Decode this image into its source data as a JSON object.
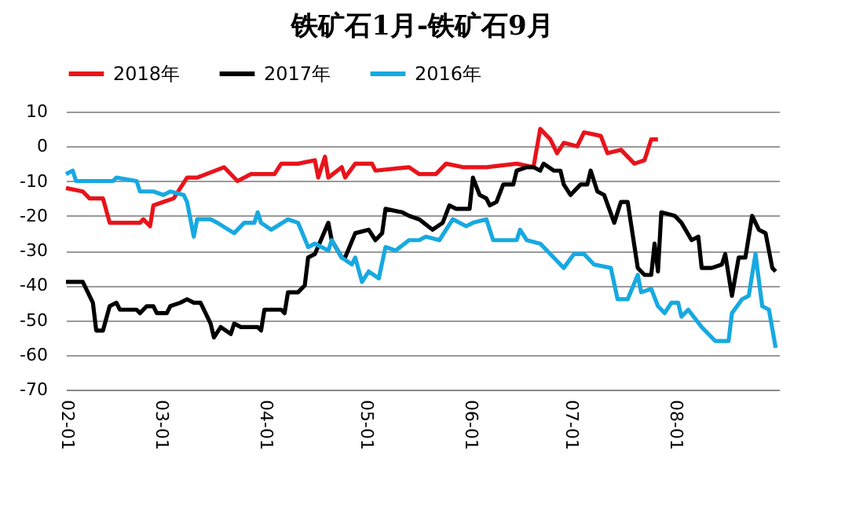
{
  "chart_data": {
    "type": "line",
    "title": "铁矿石1月-铁矿石9月",
    "xlim": [
      "--02-01",
      "--09-01"
    ],
    "xticks": [
      {
        "value": "--02-01",
        "label": "02-01"
      },
      {
        "value": "--03-01",
        "label": "03-01"
      },
      {
        "value": "--04-01",
        "label": "04-01"
      },
      {
        "value": "--05-01",
        "label": "05-01"
      },
      {
        "value": "--06-01",
        "label": "06-01"
      },
      {
        "value": "--07-01",
        "label": "07-01"
      },
      {
        "value": "--08-01",
        "label": "08-01"
      }
    ],
    "ylim": [
      -70,
      10
    ],
    "yticks": [
      -70,
      -60,
      -50,
      -40,
      -30,
      -20,
      -10,
      0,
      10
    ],
    "grid": "y",
    "legend": "top",
    "line_style": "solid",
    "series": [
      {
        "name": "2018年",
        "color": "#e8141b",
        "x": [
          "--02-01",
          "--02-06",
          "--02-08",
          "--02-12",
          "--02-14",
          "--02-23",
          "--02-24",
          "--02-26",
          "--02-27",
          "--03-02",
          "--03-05",
          "--03-09",
          "--03-12",
          "--03-20",
          "--03-24",
          "--03-28",
          "--04-04",
          "--04-06",
          "--04-11",
          "--04-16",
          "--04-17",
          "--04-19",
          "--04-20",
          "--04-24",
          "--04-25",
          "--04-28",
          "--05-03",
          "--05-04",
          "--05-14",
          "--05-17",
          "--05-22",
          "--05-25",
          "--05-30",
          "--06-06",
          "--06-15",
          "--06-20",
          "--06-22",
          "--06-25",
          "--06-27",
          "--06-29",
          "--07-03",
          "--07-05",
          "--07-10",
          "--07-12",
          "--07-16",
          "--07-20",
          "--07-23",
          "--07-25",
          "--07-27"
        ],
        "values": [
          -12,
          -13,
          -15,
          -15,
          -22,
          -22,
          -21,
          -23,
          -17,
          -16,
          -15,
          -9,
          -9,
          -6,
          -10,
          -8,
          -8,
          -5,
          -5,
          -4,
          -9,
          -3,
          -9,
          -6,
          -9,
          -5,
          -5,
          -7,
          -6,
          -8,
          -8,
          -5,
          -6,
          -6,
          -5,
          -6,
          5,
          2,
          -2,
          1,
          0,
          4,
          3,
          -2,
          -1,
          -5,
          -4,
          2,
          2
        ]
      },
      {
        "name": "2017年",
        "color": "#000000",
        "x": [
          "--02-01",
          "--02-06",
          "--02-09",
          "--02-10",
          "--02-12",
          "--02-14",
          "--02-16",
          "--02-17",
          "--02-22",
          "--02-23",
          "--02-25",
          "--02-27",
          "--02-28",
          "--03-03",
          "--03-04",
          "--03-07",
          "--03-09",
          "--03-11",
          "--03-13",
          "--03-16",
          "--03-17",
          "--03-19",
          "--03-22",
          "--03-23",
          "--03-25",
          "--03-30",
          "--03-31",
          "--04-01",
          "--04-06",
          "--04-07",
          "--04-08",
          "--04-11",
          "--04-13",
          "--04-14",
          "--04-16",
          "--04-20",
          "--04-21",
          "--04-24",
          "--04-25",
          "--04-28",
          "--05-02",
          "--05-04",
          "--05-06",
          "--05-07",
          "--05-12",
          "--05-14",
          "--05-17",
          "--05-21",
          "--05-24",
          "--05-26",
          "--05-28",
          "--06-01",
          "--06-02",
          "--06-04",
          "--06-06",
          "--06-07",
          "--06-09",
          "--06-11",
          "--06-14",
          "--06-15",
          "--06-18",
          "--06-20",
          "--06-22",
          "--06-23",
          "--06-26",
          "--06-28",
          "--06-29",
          "--07-01",
          "--07-04",
          "--07-06",
          "--07-07",
          "--07-09",
          "--07-11",
          "--07-14",
          "--07-16",
          "--07-18",
          "--07-21",
          "--07-23",
          "--07-25",
          "--07-26",
          "--07-27",
          "--07-28",
          "--08-01",
          "--08-03",
          "--08-06",
          "--08-08",
          "--08-09",
          "--08-12",
          "--08-15",
          "--08-16",
          "--08-18",
          "--08-20",
          "--08-22",
          "--08-24",
          "--08-26",
          "--08-28",
          "--08-30",
          "--08-31"
        ],
        "values": [
          -39,
          -39,
          -45,
          -53,
          -53,
          -46,
          -45,
          -47,
          -47,
          -48,
          -46,
          -46,
          -48,
          -48,
          -46,
          -45,
          -44,
          -45,
          -45,
          -51,
          -55,
          -52,
          -54,
          -51,
          -52,
          -52,
          -53,
          -47,
          -47,
          -48,
          -42,
          -42,
          -40,
          -32,
          -31,
          -22,
          -27,
          -32,
          -32,
          -25,
          -24,
          -27,
          -25,
          -18,
          -19,
          -20,
          -21,
          -24,
          -22,
          -17,
          -18,
          -18,
          -9,
          -14,
          -15,
          -17,
          -16,
          -11,
          -11,
          -7,
          -6,
          -6,
          -7,
          -5,
          -7,
          -7,
          -11,
          -14,
          -11,
          -11,
          -7,
          -13,
          -14,
          -22,
          -16,
          -16,
          -35,
          -37,
          -37,
          -28,
          -36,
          -19,
          -20,
          -22,
          -27,
          -26,
          -35,
          -35,
          -34,
          -31,
          -43,
          -32,
          -32,
          -20,
          -24,
          -25,
          -35,
          -36
        ]
      },
      {
        "name": "2016年",
        "color": "#17a9e1",
        "x": [
          "--02-01",
          "--02-03",
          "--02-04",
          "--02-15",
          "--02-16",
          "--02-22",
          "--02-23",
          "--02-27",
          "--03-02",
          "--03-04",
          "--03-08",
          "--03-09",
          "--03-11",
          "--03-12",
          "--03-16",
          "--03-18",
          "--03-23",
          "--03-26",
          "--03-29",
          "--03-30",
          "--03-31",
          "--04-03",
          "--04-08",
          "--04-11",
          "--04-14",
          "--04-16",
          "--04-20",
          "--04-21",
          "--04-24",
          "--04-27",
          "--04-28",
          "--04-30",
          "--05-02",
          "--05-05",
          "--05-07",
          "--05-10",
          "--05-14",
          "--05-17",
          "--05-19",
          "--05-23",
          "--05-27",
          "--05-31",
          "--06-02",
          "--06-06",
          "--06-08",
          "--06-15",
          "--06-16",
          "--06-18",
          "--06-22",
          "--06-27",
          "--06-29",
          "--07-02",
          "--07-05",
          "--07-08",
          "--07-13",
          "--07-15",
          "--07-18",
          "--07-21",
          "--07-22",
          "--07-25",
          "--07-27",
          "--07-29",
          "--07-31",
          "--08-02",
          "--08-03",
          "--08-05",
          "--08-09",
          "--08-13",
          "--08-17",
          "--08-18",
          "--08-21",
          "--08-23",
          "--08-25",
          "--08-27",
          "--08-29",
          "--08-31"
        ],
        "values": [
          -8,
          -7,
          -10,
          -10,
          -9,
          -10,
          -13,
          -13,
          -14,
          -13,
          -14,
          -16,
          -26,
          -21,
          -21,
          -22,
          -25,
          -22,
          -22,
          -19,
          -22,
          -24,
          -21,
          -22,
          -29,
          -28,
          -30,
          -27,
          -32,
          -34,
          -32,
          -39,
          -36,
          -38,
          -29,
          -30,
          -27,
          -27,
          -26,
          -27,
          -21,
          -23,
          -22,
          -21,
          -27,
          -27,
          -24,
          -27,
          -28,
          -33,
          -35,
          -31,
          -31,
          -34,
          -35,
          -44,
          -44,
          -37,
          -42,
          -41,
          -46,
          -48,
          -45,
          -45,
          -49,
          -47,
          -52,
          -56,
          -56,
          -48,
          -44,
          -43,
          -31,
          -46,
          -47,
          -58
        ]
      }
    ]
  }
}
